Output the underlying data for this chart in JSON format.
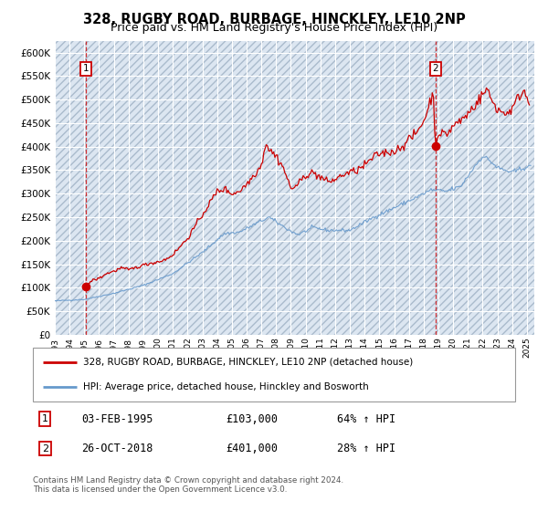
{
  "title": "328, RUGBY ROAD, BURBAGE, HINCKLEY, LE10 2NP",
  "subtitle": "Price paid vs. HM Land Registry's House Price Index (HPI)",
  "title_fontsize": 10.5,
  "subtitle_fontsize": 9,
  "plot_bg_color": "#dce6f1",
  "hatch_color": "#b8c9de",
  "ylabel_vals": [
    0,
    50000,
    100000,
    150000,
    200000,
    250000,
    300000,
    350000,
    400000,
    450000,
    500000,
    550000,
    600000
  ],
  "ylim": [
    0,
    625000
  ],
  "xlim_start": 1993.0,
  "xlim_end": 2025.5,
  "xtick_years": [
    1993,
    1994,
    1995,
    1996,
    1997,
    1998,
    1999,
    2000,
    2001,
    2002,
    2003,
    2004,
    2005,
    2006,
    2007,
    2008,
    2009,
    2010,
    2011,
    2012,
    2013,
    2014,
    2015,
    2016,
    2017,
    2018,
    2019,
    2020,
    2021,
    2022,
    2023,
    2024,
    2025
  ],
  "purchase1_date": 1995.085,
  "purchase1_price": 103000,
  "purchase2_date": 2018.81,
  "purchase2_price": 401000,
  "red_line_color": "#cc0000",
  "blue_line_color": "#6699cc",
  "legend_label_red": "328, RUGBY ROAD, BURBAGE, HINCKLEY, LE10 2NP (detached house)",
  "legend_label_blue": "HPI: Average price, detached house, Hinckley and Bosworth",
  "annotation1_label": "1",
  "annotation2_label": "2",
  "info1_num": "1",
  "info1_date": "03-FEB-1995",
  "info1_price": "£103,000",
  "info1_hpi": "64% ↑ HPI",
  "info2_num": "2",
  "info2_date": "26-OCT-2018",
  "info2_price": "£401,000",
  "info2_hpi": "28% ↑ HPI",
  "footer": "Contains HM Land Registry data © Crown copyright and database right 2024.\nThis data is licensed under the Open Government Licence v3.0."
}
